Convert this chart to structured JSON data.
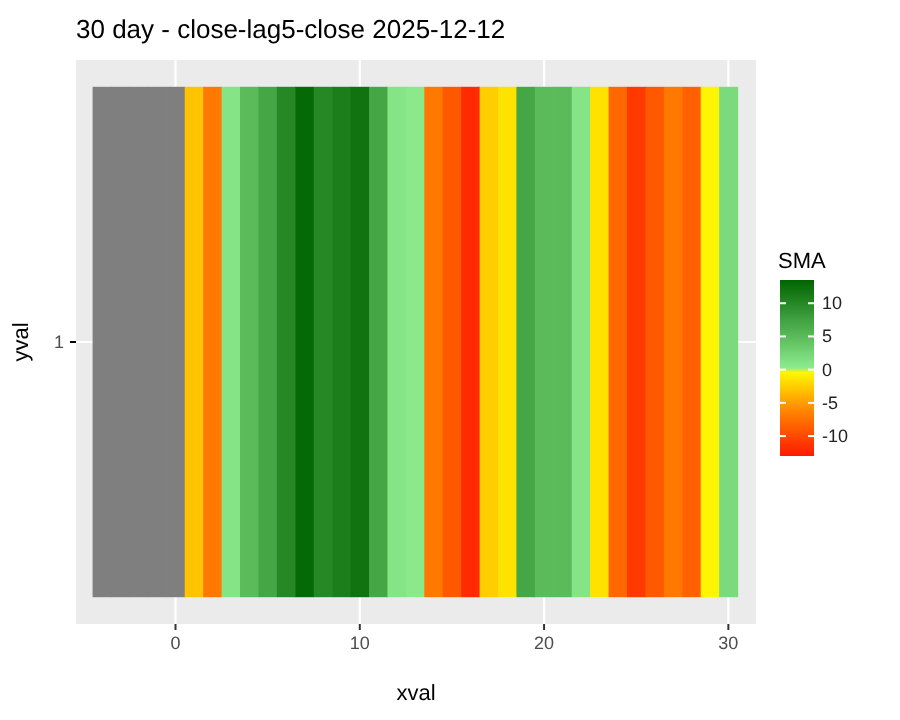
{
  "chart_data": {
    "type": "heatmap",
    "title": "30 day - close-lag5-close  2025-12-12",
    "xlabel": "xval",
    "ylabel": "yval",
    "clabel": "SMA",
    "x": [
      -4,
      -3,
      -2,
      -1,
      0,
      1,
      2,
      3,
      4,
      5,
      6,
      7,
      8,
      9,
      10,
      11,
      12,
      13,
      14,
      15,
      16,
      17,
      18,
      19,
      20,
      21,
      22,
      23,
      24,
      25,
      26,
      27,
      28,
      29,
      30
    ],
    "y_categories": [
      "1"
    ],
    "cells": [
      [
        null,
        null,
        null,
        null,
        null,
        -3,
        -7,
        1,
        5,
        7,
        10,
        13,
        10,
        11,
        12,
        7,
        1,
        0.5,
        -7,
        -9,
        -12,
        -2.5,
        -1.5,
        7,
        5,
        5,
        1,
        -1.5,
        -8,
        -11,
        -9,
        -7,
        -8.5,
        -0.5,
        2
      ]
    ],
    "xlim": [
      -5.4,
      31.5
    ],
    "xticks": [
      0,
      10,
      20,
      30
    ],
    "clim": [
      -13,
      13.5
    ],
    "cticks": [
      -10,
      -5,
      0,
      5,
      10
    ],
    "grid": true
  }
}
